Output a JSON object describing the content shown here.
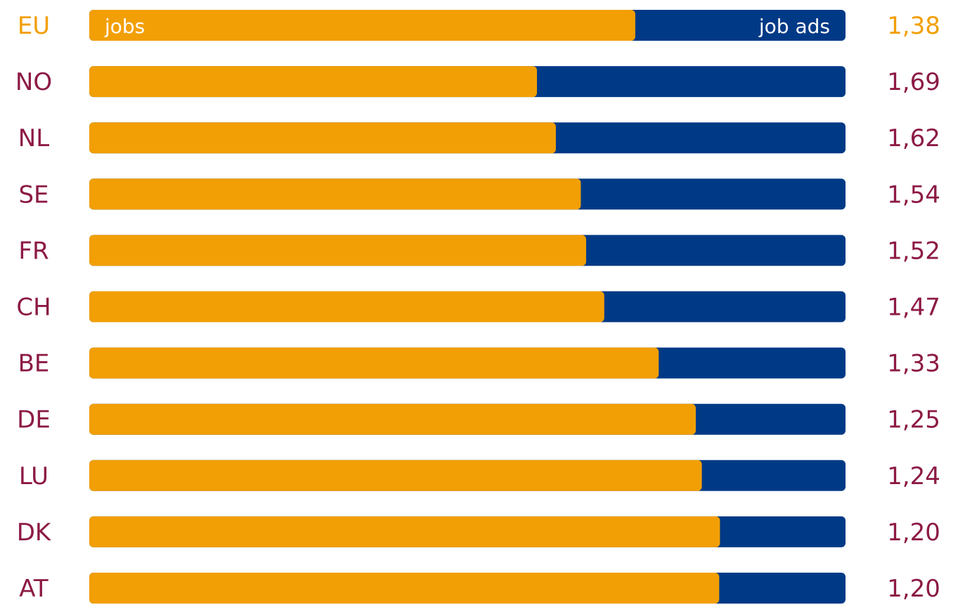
{
  "chart_data": {
    "type": "bar",
    "orientation": "horizontal",
    "stacked": "100%",
    "categories": [
      "EU",
      "NO",
      "NL",
      "SE",
      "FR",
      "CH",
      "BE",
      "DE",
      "LU",
      "DK",
      "AT"
    ],
    "series": [
      {
        "name": "jobs",
        "color": "#F29F05",
        "values": [
          72.2,
          59.2,
          61.7,
          65.0,
          65.7,
          68.1,
          75.3,
          80.2,
          81.0,
          83.4,
          83.3
        ]
      },
      {
        "name": "job ads",
        "color": "#003A86",
        "values": [
          27.8,
          40.8,
          38.3,
          35.0,
          34.3,
          31.9,
          24.7,
          19.8,
          19.0,
          16.6,
          16.7
        ]
      }
    ],
    "ratio_labels": [
      "1,38",
      "1,69",
      "1,62",
      "1,54",
      "1,52",
      "1,47",
      "1,33",
      "1,25",
      "1,24",
      "1,20",
      "1,20"
    ],
    "highlight_category": "EU",
    "colors": {
      "highlight": "#F29F05",
      "text": "#8C1A45"
    },
    "xlim": [
      0,
      100
    ],
    "grid": false,
    "legend": "inline-first-bar"
  }
}
